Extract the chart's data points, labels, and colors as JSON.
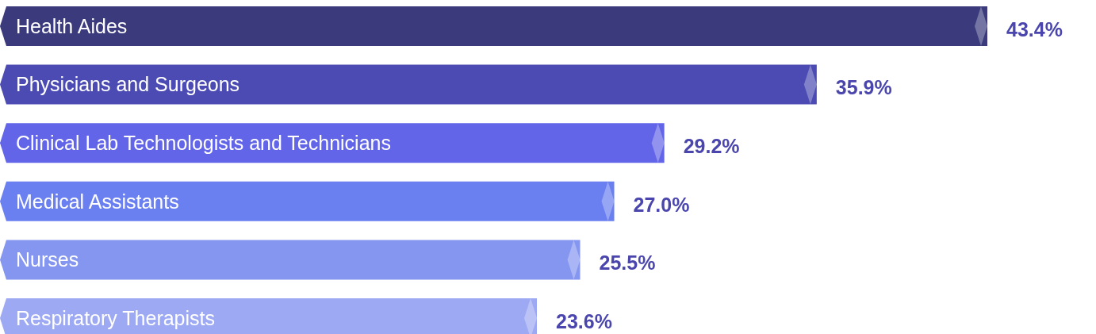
{
  "chart_data": {
    "type": "bar",
    "orientation": "horizontal",
    "categories": [
      "Health Aides",
      "Physicians and Surgeons",
      "Clinical Lab Technologists and Technicians",
      "Medical Assistants",
      "Nurses",
      "Respiratory Therapists"
    ],
    "values": [
      43.4,
      35.9,
      29.2,
      27.0,
      25.5,
      23.6
    ],
    "value_labels": [
      "43.4%",
      "35.9%",
      "29.2%",
      "27.0%",
      "25.5%",
      "23.6%"
    ],
    "colors": [
      "#3a3a7c",
      "#4b4bb3",
      "#6265e8",
      "#6b80f0",
      "#8496ef",
      "#9ea9f3"
    ],
    "grid": false
  }
}
